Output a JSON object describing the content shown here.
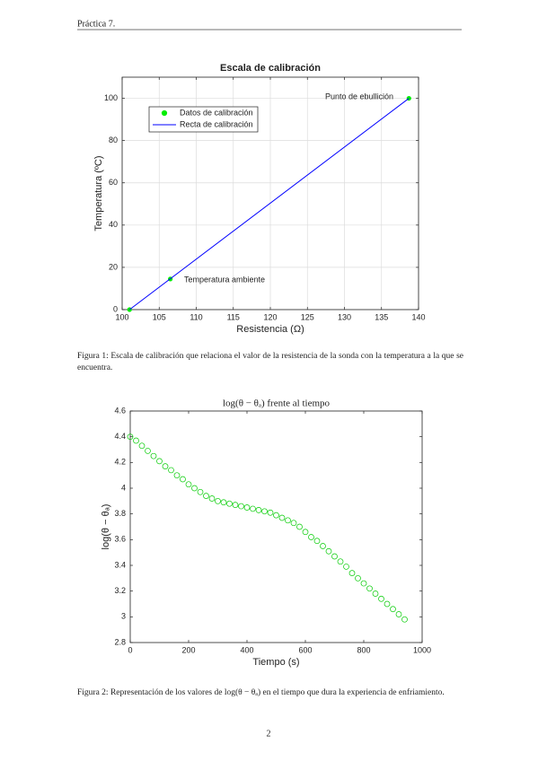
{
  "header": "Práctica 7.",
  "chart_data": [
    {
      "type": "scatter",
      "title": "Escala de calibración",
      "x_label": "Resistencia (Ω)",
      "y_label": "Temperatura (ºC)",
      "xlim": [
        100,
        140
      ],
      "xticks": [
        100,
        105,
        110,
        115,
        120,
        125,
        130,
        135,
        140
      ],
      "ylim": [
        0,
        110
      ],
      "yticks": [
        0,
        20,
        40,
        60,
        80,
        100
      ],
      "grid": true,
      "legend": "upper left",
      "series": [
        {
          "name": "Datos de calibración",
          "type": "scatter",
          "filled": true,
          "color": "#00ee00",
          "x": [
            101,
            106.5,
            138.7
          ],
          "values": [
            0,
            14.5,
            100
          ]
        },
        {
          "name": "Recta de calibración",
          "type": "line",
          "color": "#0000ff",
          "x": [
            101,
            138.7
          ],
          "values": [
            0,
            100
          ]
        }
      ],
      "annotations": [
        "Punto de ebullición",
        "Temperatura ambiente"
      ]
    },
    {
      "type": "scatter",
      "title": "log(θ − θₐ) frente al tiempo",
      "x_label": "Tiempo (s)",
      "y_label": "log(θ − θₐ)",
      "xlim": [
        0,
        1000
      ],
      "xticks": [
        0,
        200,
        400,
        600,
        800,
        1000
      ],
      "ylim": [
        2.8,
        4.6
      ],
      "yticks": [
        2.8,
        3,
        3.2,
        3.4,
        3.6,
        3.8,
        4,
        4.2,
        4.4,
        4.6
      ],
      "grid": false,
      "series": [
        {
          "name": "log(θ − θₐ)",
          "type": "scatter",
          "filled": false,
          "color": "#00cc00",
          "x": [
            0,
            20,
            40,
            60,
            80,
            100,
            120,
            140,
            160,
            180,
            200,
            220,
            240,
            260,
            280,
            300,
            320,
            340,
            360,
            380,
            400,
            420,
            440,
            460,
            480,
            500,
            520,
            540,
            560,
            580,
            600,
            620,
            640,
            660,
            680,
            700,
            720,
            740,
            760,
            780,
            800,
            820,
            840,
            860,
            880,
            900,
            920,
            940
          ],
          "values": [
            4.4,
            4.37,
            4.33,
            4.29,
            4.25,
            4.21,
            4.17,
            4.14,
            4.1,
            4.07,
            4.03,
            4.0,
            3.97,
            3.94,
            3.92,
            3.9,
            3.89,
            3.88,
            3.87,
            3.86,
            3.85,
            3.84,
            3.83,
            3.82,
            3.81,
            3.79,
            3.77,
            3.75,
            3.73,
            3.7,
            3.66,
            3.62,
            3.59,
            3.55,
            3.51,
            3.47,
            3.43,
            3.39,
            3.34,
            3.3,
            3.26,
            3.22,
            3.18,
            3.14,
            3.1,
            3.06,
            3.02,
            2.98
          ]
        }
      ]
    }
  ],
  "captions": [
    "Figura 1: Escala de calibración que relaciona el valor de la resistencia de la sonda con la temperatura a la que se encuentra.",
    "Figura 2: Representación de los valores de log(θ − θₐ) en el tiempo que dura la experiencia de enfriamiento."
  ],
  "page_number": "2"
}
